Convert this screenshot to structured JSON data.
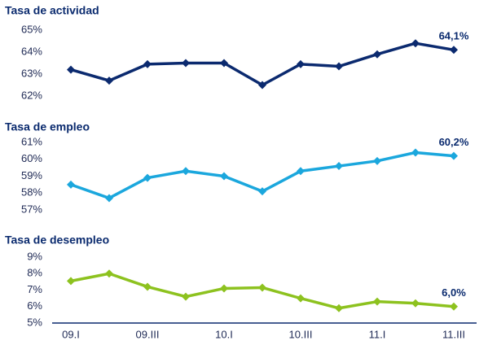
{
  "chart_data": [
    {
      "type": "line",
      "title": "Tasa de actividad",
      "series": [
        {
          "name": "Tasa de actividad",
          "color": "#0b2a6f",
          "values": [
            63.2,
            62.7,
            63.45,
            63.5,
            63.5,
            62.5,
            63.45,
            63.35,
            63.9,
            64.4,
            64.1
          ],
          "value_labels": [
            null,
            null,
            null,
            null,
            null,
            null,
            null,
            null,
            null,
            null,
            "64,1%"
          ]
        }
      ],
      "ylim": [
        62,
        65
      ],
      "yticks": [
        {
          "value": 62,
          "label": "62%"
        },
        {
          "value": 63,
          "label": "63%"
        },
        {
          "value": 64,
          "label": "64%"
        },
        {
          "value": 65,
          "label": "65%"
        }
      ]
    },
    {
      "type": "line",
      "title": "Tasa de empleo",
      "series": [
        {
          "name": "Tasa de empleo",
          "color": "#1ba7dd",
          "values": [
            58.5,
            57.7,
            58.9,
            59.3,
            59.0,
            58.1,
            59.3,
            59.6,
            59.9,
            60.4,
            60.2
          ],
          "value_labels": [
            null,
            null,
            null,
            null,
            null,
            null,
            null,
            null,
            null,
            null,
            "60,2%"
          ]
        }
      ],
      "ylim": [
        57,
        61
      ],
      "yticks": [
        {
          "value": 57,
          "label": "57%"
        },
        {
          "value": 58,
          "label": "58%"
        },
        {
          "value": 59,
          "label": "59%"
        },
        {
          "value": 60,
          "label": "60%"
        },
        {
          "value": 61,
          "label": "61%"
        }
      ]
    },
    {
      "type": "line",
      "title": "Tasa de desempleo",
      "categories": [
        "09.I",
        null,
        "09.III",
        null,
        "10.I",
        null,
        "10.III",
        null,
        "11.I",
        null,
        "11.III"
      ],
      "series": [
        {
          "name": "Tasa de desempleo",
          "color": "#8dc21f",
          "values": [
            7.55,
            8.0,
            7.2,
            6.6,
            7.1,
            7.15,
            6.5,
            5.9,
            6.3,
            6.2,
            6.0
          ],
          "value_labels": [
            null,
            null,
            null,
            null,
            null,
            null,
            null,
            null,
            null,
            null,
            "6,0%"
          ]
        }
      ],
      "ylim": [
        5,
        9
      ],
      "yticks": [
        {
          "value": 5,
          "label": "5%"
        },
        {
          "value": 6,
          "label": "6%"
        },
        {
          "value": 7,
          "label": "7%"
        },
        {
          "value": 8,
          "label": "8%"
        },
        {
          "value": 9,
          "label": "9%"
        }
      ]
    }
  ]
}
